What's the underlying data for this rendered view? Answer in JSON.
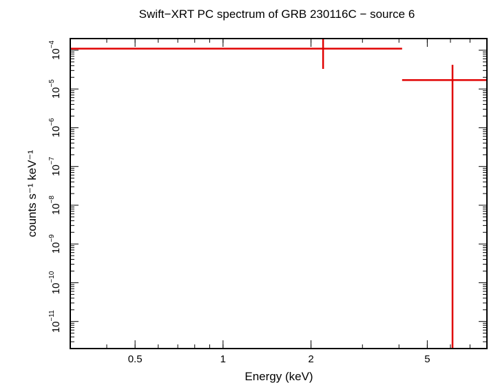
{
  "chart_data": {
    "type": "scatter",
    "title": "Swift−XRT PC spectrum of GRB 230116C − source 6",
    "xlabel": "Energy (keV)",
    "ylabel": "counts s⁻¹ keV⁻¹",
    "xscale": "log",
    "yscale": "log",
    "xlim": [
      0.3,
      8.0
    ],
    "ylim": [
      2e-12,
      0.0002
    ],
    "grid": false,
    "x_ticks": [
      {
        "value": 0.5,
        "label": "0.5"
      },
      {
        "value": 1,
        "label": "1"
      },
      {
        "value": 2,
        "label": "2"
      },
      {
        "value": 5,
        "label": "5"
      }
    ],
    "y_ticks": [
      {
        "base": "10",
        "exp": "−4",
        "value": 0.0001
      },
      {
        "base": "10",
        "exp": "−5",
        "value": 1e-05
      },
      {
        "base": "10",
        "exp": "−6",
        "value": 1e-06
      },
      {
        "base": "10",
        "exp": "−7",
        "value": 1e-07
      },
      {
        "base": "10",
        "exp": "−8",
        "value": 1e-08
      },
      {
        "base": "10",
        "exp": "−9",
        "value": 1e-09
      },
      {
        "base": "10",
        "exp": "−10",
        "value": 1e-10
      },
      {
        "base": "10",
        "exp": "−11",
        "value": 1e-11
      }
    ],
    "series": [
      {
        "color": "#e00000",
        "points": [
          {
            "x": 2.2,
            "y": 0.00011,
            "xlo": 0.3,
            "xhi": 4.1,
            "ylo": 3.3e-05,
            "yhi": 0.0002
          },
          {
            "x": 6.1,
            "y": 1.7e-05,
            "xlo": 4.1,
            "xhi": 8.0,
            "ylo": 2e-12,
            "yhi": 4.2e-05
          }
        ]
      }
    ]
  }
}
